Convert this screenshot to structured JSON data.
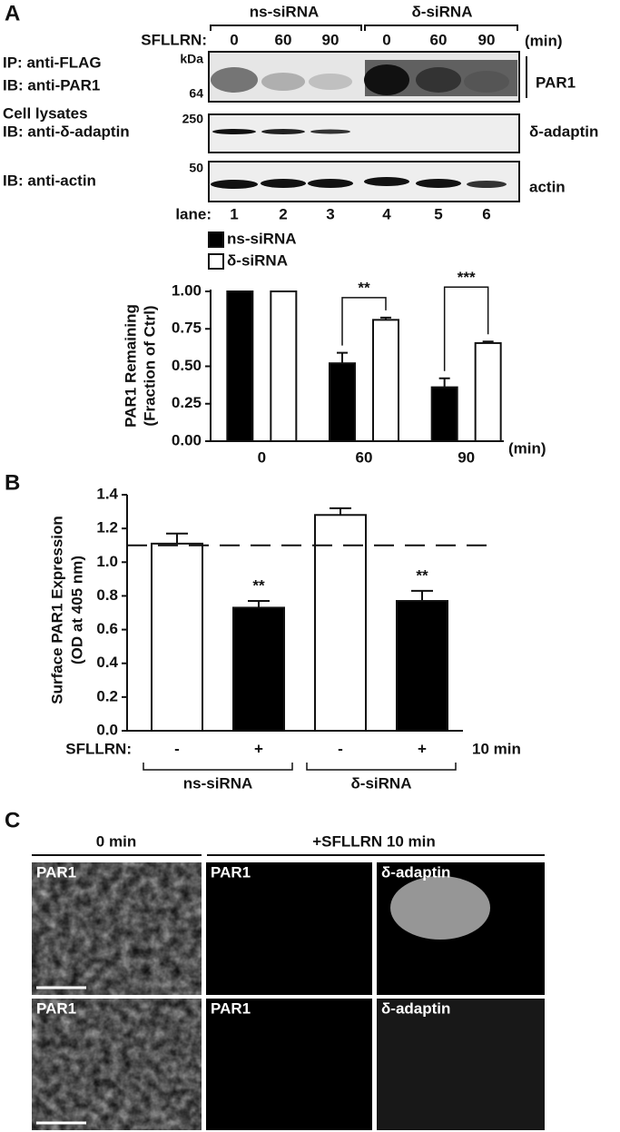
{
  "panel_labels": [
    "A",
    "B",
    "C"
  ],
  "blot": {
    "groups": [
      "ns-siRNA",
      "δ-siRNA"
    ],
    "treatment_label": "SFLLRN:",
    "times": [
      "0",
      "60",
      "90",
      "0",
      "60",
      "90"
    ],
    "time_unit": "(min)",
    "left_labels": [
      "IP: anti-FLAG",
      "IB: anti-PAR1",
      "Cell lysates",
      "IB: anti-δ-adaptin",
      "IB: anti-actin"
    ],
    "markers": [
      "kDa",
      "64",
      "250",
      "50"
    ],
    "right_labels": [
      "PAR1",
      "δ-adaptin",
      "actin"
    ],
    "lane_label": "lane:",
    "lanes": [
      "1",
      "2",
      "3",
      "4",
      "5",
      "6"
    ]
  },
  "chart_data": [
    {
      "type": "bar",
      "y_label": [
        "PAR1 Remaining",
        "(Fraction of Ctrl)"
      ],
      "x_label": "(min)",
      "categories": [
        "0",
        "60",
        "90"
      ],
      "series": [
        {
          "name": "ns-siRNA",
          "color": "#000000",
          "values": [
            1.0,
            0.52,
            0.36
          ],
          "errors": [
            0,
            0.07,
            0.06
          ]
        },
        {
          "name": "δ-siRNA",
          "color": "#ffffff",
          "values": [
            1.0,
            0.81,
            0.655
          ],
          "errors": [
            0,
            0.015,
            0.01
          ]
        }
      ],
      "annotations": [
        null,
        "**",
        "***"
      ],
      "ylim": [
        0,
        1.0
      ],
      "yticks": [
        {
          "value": 0,
          "label": "0.00"
        },
        {
          "value": 0.25,
          "label": "0.25"
        },
        {
          "value": 0.5,
          "label": "0.50"
        },
        {
          "value": 0.75,
          "label": "0.75"
        },
        {
          "value": 1,
          "label": "1.00"
        }
      ]
    },
    {
      "type": "bar",
      "y_label": [
        "Surface PAR1 Expression",
        "(OD at 405 nm)"
      ],
      "treatment_label": "SFLLRN:",
      "categories": [
        "-",
        "+",
        "-",
        "+"
      ],
      "treatment_time": "10 min",
      "groups": [
        "ns-siRNA",
        "δ-siRNA"
      ],
      "values": [
        1.11,
        0.73,
        1.28,
        0.77
      ],
      "errors": [
        0.06,
        0.04,
        0.04,
        0.06
      ],
      "colors": [
        "#ffffff",
        "#000000",
        "#ffffff",
        "#000000"
      ],
      "annotations": [
        null,
        "**",
        null,
        "**"
      ],
      "reference_line": 1.1,
      "ylim": [
        0,
        1.4
      ],
      "yticks": [
        {
          "value": 0,
          "label": "0.0"
        },
        {
          "value": 0.2,
          "label": "0.2"
        },
        {
          "value": 0.4,
          "label": "0.4"
        },
        {
          "value": 0.6,
          "label": "0.6"
        },
        {
          "value": 0.8,
          "label": "0.8"
        },
        {
          "value": 1,
          "label": "1.0"
        },
        {
          "value": 1.2,
          "label": "1.2"
        },
        {
          "value": 1.4,
          "label": "1.4"
        }
      ]
    }
  ],
  "micrographs": {
    "headers": [
      "0 min",
      "+SFLLRN 10 min"
    ],
    "labels": [
      [
        "PAR1",
        "PAR1",
        "δ-adaptin"
      ],
      [
        "PAR1",
        "PAR1",
        "δ-adaptin"
      ]
    ]
  }
}
